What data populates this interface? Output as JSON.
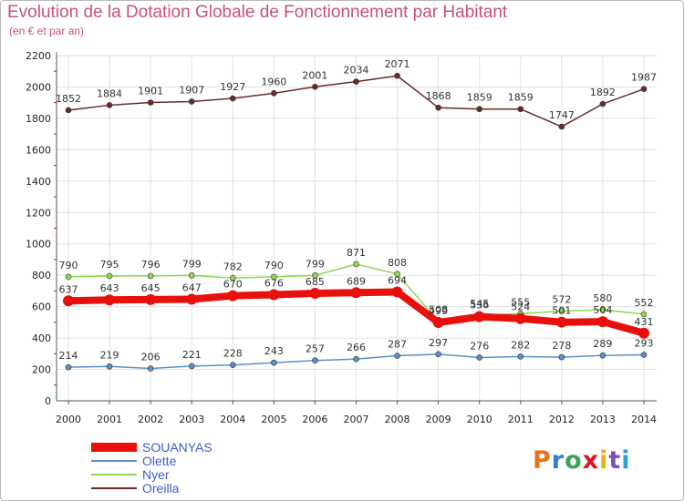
{
  "title": "Evolution de la Dotation Globale de Fonctionnement par Habitant",
  "subtitle": "(en € et par an)",
  "logo": "Proxiti",
  "colors": {
    "title": "#c8507d",
    "legend_text": "#3b5cc9",
    "grid": "#e2e2e2",
    "axis": "#555555",
    "axis_ticks_minor": "#d01010"
  },
  "chart_data": {
    "type": "line",
    "x": [
      "2000",
      "2001",
      "2002",
      "2003",
      "2004",
      "2005",
      "2006",
      "2007",
      "2008",
      "2009",
      "2010",
      "2011",
      "2012",
      "2013",
      "2014"
    ],
    "ylim": [
      0,
      2200
    ],
    "yticks": [
      0,
      200,
      400,
      600,
      800,
      1000,
      1200,
      1400,
      1600,
      1800,
      2000,
      2200
    ],
    "grid": true,
    "legend": "bottom-left",
    "series": [
      {
        "name": "SOUANYAS",
        "color": "#e8100c",
        "values": [
          637,
          643,
          645,
          647,
          670,
          676,
          685,
          689,
          694,
          499,
          536,
          524,
          501,
          504,
          431
        ]
      },
      {
        "name": "Olette",
        "color": "#5b8fc8",
        "values": [
          214,
          219,
          206,
          221,
          228,
          243,
          257,
          266,
          287,
          297,
          276,
          282,
          278,
          289,
          293
        ]
      },
      {
        "name": "Nyer",
        "color": "#8fd84f",
        "values": [
          790,
          795,
          796,
          799,
          782,
          790,
          799,
          871,
          808,
          508,
          545,
          555,
          572,
          580,
          552
        ]
      },
      {
        "name": "Oreilla",
        "color": "#6b2a2a",
        "values": [
          1852,
          1884,
          1901,
          1907,
          1927,
          1960,
          2001,
          2034,
          2071,
          1868,
          1859,
          1859,
          1747,
          1892,
          1987
        ]
      }
    ]
  }
}
